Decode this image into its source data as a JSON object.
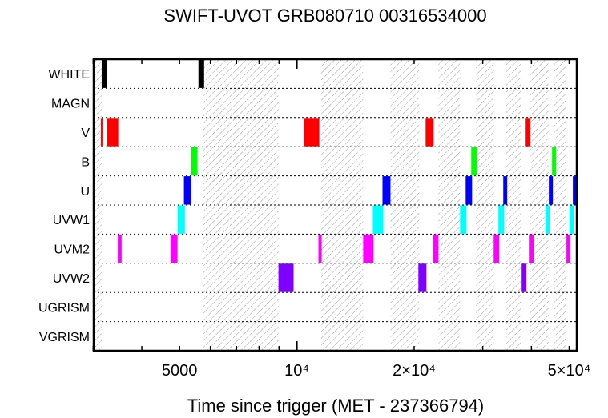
{
  "chart_data": {
    "type": "timeline",
    "title": "SWIFT-UVOT GRB080710 00316534000",
    "xlabel": "Time since trigger (MET - 237366794)",
    "xscale": "log",
    "xlim": [
      3010,
      52300
    ],
    "xticks": [
      {
        "value": 5000,
        "label": "5000"
      },
      {
        "value": 10000,
        "label": "10⁴"
      },
      {
        "value": 20000,
        "label": "2×10⁴"
      },
      {
        "value": 50000,
        "label": "5×10⁴"
      }
    ],
    "minor_ticks": [
      3000,
      4000,
      5000,
      6000,
      7000,
      8000,
      9000,
      20000,
      30000,
      40000,
      50000
    ],
    "major_ticks": [
      10000
    ],
    "hatched_intervals": [
      [
        3010,
        3155
      ],
      [
        5750,
        8970
      ],
      [
        11520,
        14800
      ],
      [
        17390,
        20610
      ],
      [
        23090,
        26360
      ],
      [
        28840,
        32050
      ],
      [
        34500,
        37600
      ],
      [
        39780,
        44340
      ],
      [
        45840,
        49200
      ]
    ],
    "rows": [
      {
        "label": "WHITE",
        "color": "#000000",
        "intervals": [
          [
            3155,
            3260
          ],
          [
            5590,
            5780
          ]
        ]
      },
      {
        "label": "MAGN",
        "color": "#000000",
        "intervals": []
      },
      {
        "label": "V",
        "color": "#ff0000",
        "intervals": [
          [
            3140,
            3170
          ],
          [
            3260,
            3480
          ],
          [
            10430,
            11420
          ],
          [
            21410,
            22440
          ],
          [
            38670,
            39780
          ]
        ]
      },
      {
        "label": "B",
        "color": "#00ff00",
        "intervals": [
          [
            5360,
            5560
          ],
          [
            28030,
            28970
          ],
          [
            45190,
            46280
          ]
        ]
      },
      {
        "label": "U",
        "color": "#0000ff",
        "intervals": [
          [
            5130,
            5360
          ],
          [
            16590,
            17390
          ],
          [
            27120,
            28170
          ],
          [
            33870,
            34670
          ],
          [
            44340,
            45410
          ],
          [
            51100,
            52300
          ]
        ]
      },
      {
        "label": "UVW1",
        "color": "#00ffff",
        "intervals": [
          [
            4940,
            5160
          ],
          [
            15670,
            16670
          ],
          [
            26240,
            27250
          ],
          [
            32920,
            34030
          ],
          [
            43510,
            44550
          ],
          [
            50140,
            51340
          ]
        ]
      },
      {
        "label": "UVM2",
        "color": "#ff00ff",
        "intervals": [
          [
            3470,
            3550
          ],
          [
            4740,
            4940
          ],
          [
            11360,
            11580
          ],
          [
            14800,
            15740
          ],
          [
            22340,
            23090
          ],
          [
            32000,
            33070
          ],
          [
            39590,
            40540
          ],
          [
            49200,
            50380
          ]
        ]
      },
      {
        "label": "UVW2",
        "color": "#8000ff",
        "intervals": [
          [
            8970,
            9810
          ],
          [
            20510,
            21510
          ],
          [
            37760,
            38850
          ]
        ]
      },
      {
        "label": "UGRISM",
        "color": "#000000",
        "intervals": []
      },
      {
        "label": "VGRISM",
        "color": "#000000",
        "intervals": []
      }
    ]
  }
}
